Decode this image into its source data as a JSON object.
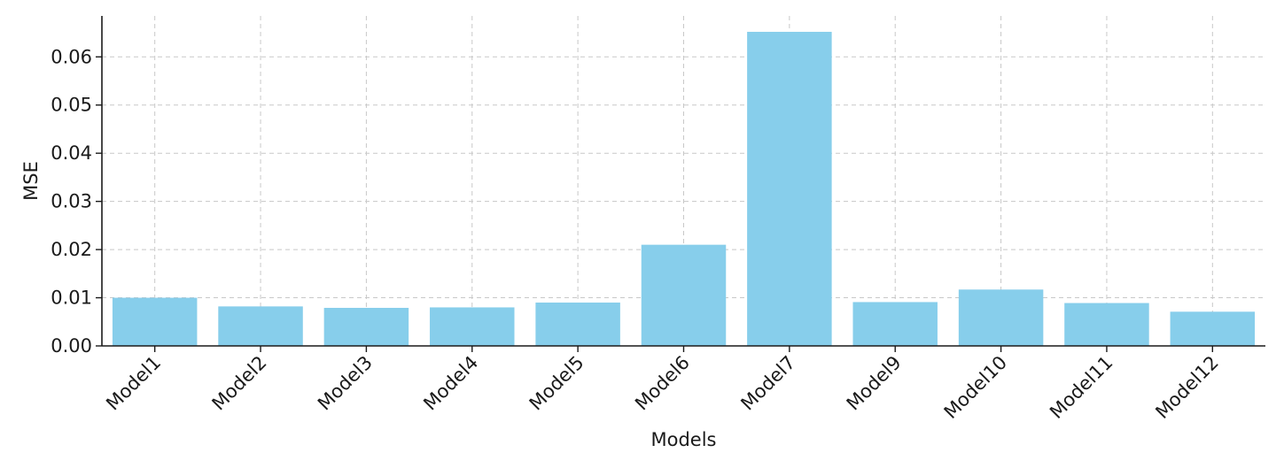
{
  "chart_data": {
    "type": "bar",
    "categories": [
      "Model1",
      "Model2",
      "Model3",
      "Model4",
      "Model5",
      "Model6",
      "Model7",
      "Model9",
      "Model10",
      "Model11",
      "Model12"
    ],
    "values": [
      0.01,
      0.0082,
      0.0079,
      0.008,
      0.009,
      0.021,
      0.0652,
      0.0091,
      0.0117,
      0.0089,
      0.0071
    ],
    "xlabel": "Models",
    "ylabel": "MSE",
    "ylim": [
      0.0,
      0.0685
    ],
    "yticks": [
      "0.00",
      "0.01",
      "0.02",
      "0.03",
      "0.04",
      "0.05",
      "0.06"
    ],
    "bar_color": "#87ceeb",
    "grid": true
  }
}
